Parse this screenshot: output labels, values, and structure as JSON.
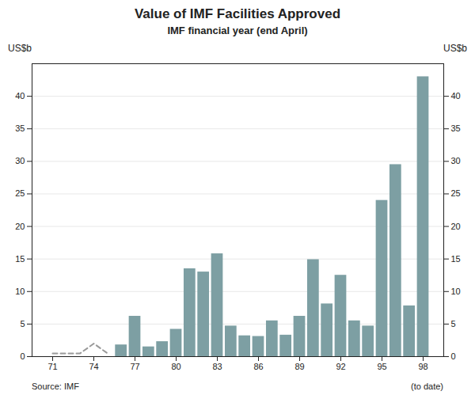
{
  "chart_data": {
    "type": "bar",
    "title": "Value of IMF Facilities Approved",
    "subtitle": "IMF financial year (end April)",
    "ylabel": "US$b",
    "y2label": "US$b",
    "annotations": [
      "Source: IMF",
      "(to date)"
    ],
    "series": [
      {
        "type": "line",
        "line_style": "dashed",
        "color": "#999999",
        "x": [
          71,
          72,
          73,
          74,
          75
        ],
        "values": [
          0.5,
          0.5,
          0.5,
          2.0,
          0.5
        ]
      },
      {
        "type": "bar",
        "color": "#7d9fa3",
        "x": [
          76,
          77,
          78,
          79,
          80,
          81,
          82,
          83,
          84,
          85,
          86,
          87,
          88,
          89,
          90,
          91,
          92,
          93,
          94,
          95,
          96,
          97,
          98
        ],
        "values": [
          1.8,
          6.2,
          1.5,
          2.3,
          4.2,
          13.5,
          13.0,
          15.8,
          4.7,
          3.2,
          3.1,
          5.5,
          3.3,
          6.2,
          14.9,
          8.1,
          12.5,
          5.5,
          4.7,
          24.0,
          29.5,
          7.8,
          43.0
        ]
      }
    ],
    "xlim": [
      69.5,
      99.5
    ],
    "xticks": [
      71,
      74,
      77,
      80,
      83,
      86,
      89,
      92,
      95,
      98
    ],
    "ylim": [
      0,
      45
    ],
    "yticks": [
      0,
      5,
      10,
      15,
      20,
      25,
      30,
      35,
      40
    ],
    "y2lim": [
      0,
      45
    ],
    "y2ticks": [
      0,
      5,
      10,
      15,
      20,
      25,
      30,
      35,
      40
    ],
    "grid": true
  }
}
